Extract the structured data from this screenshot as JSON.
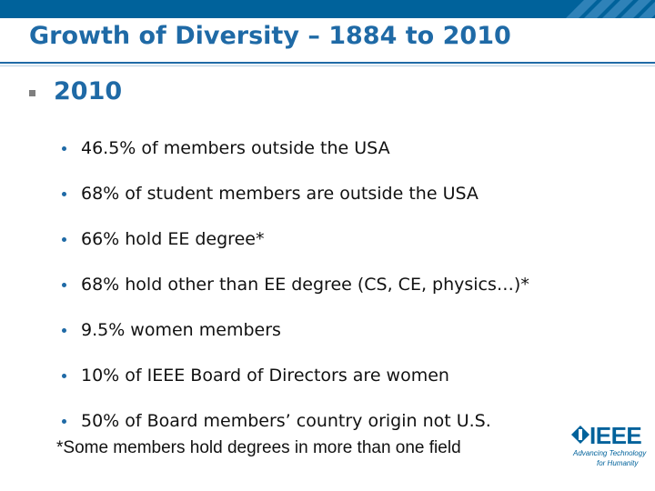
{
  "slide": {
    "title": "Growth of Diversity – 1884 to 2010",
    "level1": "2010",
    "bullets": [
      "46.5% of members outside the USA",
      "68% of student members are outside the USA",
      "66% hold EE degree*",
      "68% hold other than EE degree (CS, CE, physics…)*",
      "9.5% women members",
      "10% of IEEE Board of Directors are women",
      "50% of Board members’ country origin not U.S."
    ],
    "footnote": "*Some members hold degrees in more than one field"
  },
  "logo": {
    "wordmark": "IEEE",
    "tagline_line1": "Advancing Technology",
    "tagline_line2": "for Humanity"
  },
  "colors": {
    "accent": "#1f6aa6",
    "bar": "#00629b"
  }
}
